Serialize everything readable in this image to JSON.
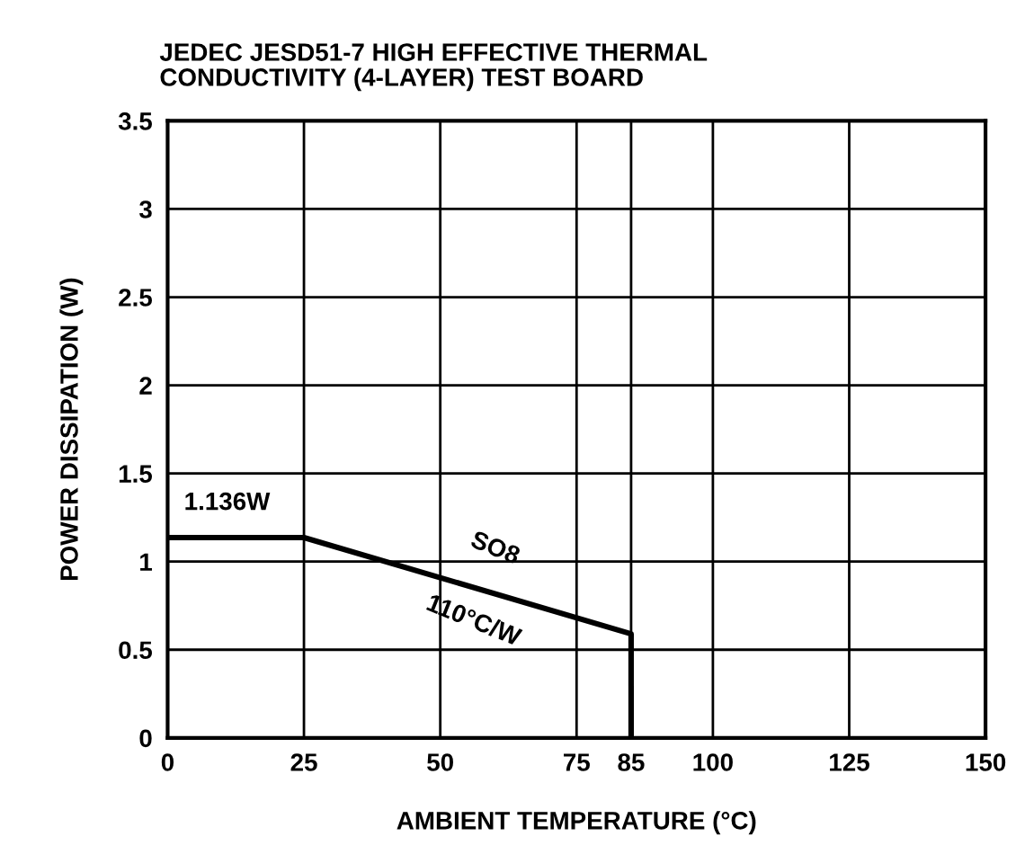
{
  "chart_data": {
    "type": "line",
    "title": "JEDEC JESD51-7 HIGH EFFECTIVE THERMAL\nCONDUCTIVITY (4-LAYER) TEST BOARD",
    "xlabel": "AMBIENT TEMPERATURE (°C)",
    "ylabel": "POWER DISSIPATION (W)",
    "x": [
      0,
      25,
      85,
      85
    ],
    "series": [
      {
        "color": "#000000",
        "values": [
          1.136,
          1.136,
          0.59,
          0
        ]
      }
    ],
    "xlim": [
      0,
      150
    ],
    "xticks": [
      0,
      25,
      50,
      75,
      85,
      100,
      125,
      150
    ],
    "ylim": [
      0,
      3.5
    ],
    "yticks": [
      0,
      0.5,
      1,
      1.5,
      2,
      2.5,
      3,
      3.5
    ],
    "grid": true,
    "line_style": "solid",
    "marker": "none",
    "annotations": [
      "1.136W",
      "SO8",
      "110°C/W"
    ]
  }
}
